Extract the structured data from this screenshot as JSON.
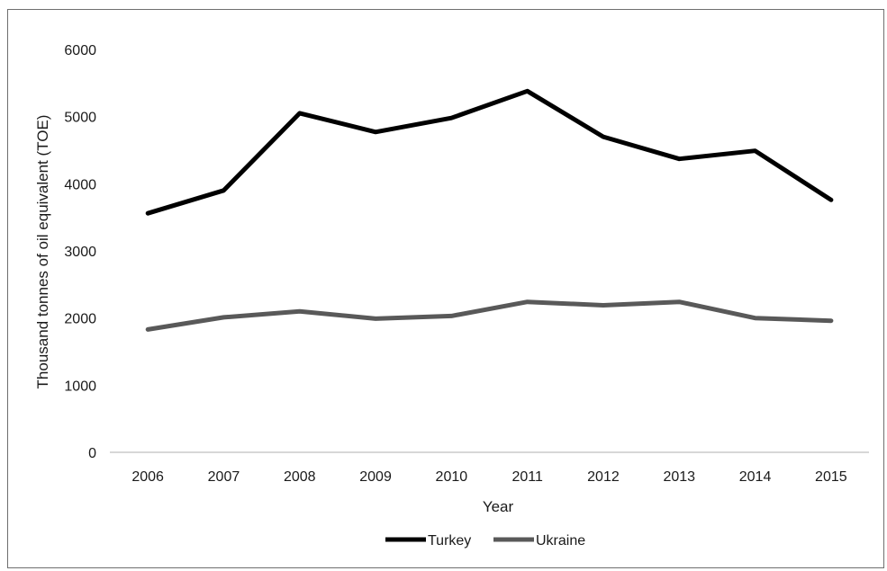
{
  "chart_data": {
    "type": "line",
    "title": "",
    "xlabel": "Year",
    "ylabel": "Thousand tonnes of oil equivalent (TOE)",
    "categories": [
      "2006",
      "2007",
      "2008",
      "2009",
      "2010",
      "2011",
      "2012",
      "2013",
      "2014",
      "2015"
    ],
    "ylim": [
      0,
      6000
    ],
    "yticks": [
      0,
      1000,
      2000,
      3000,
      4000,
      5000,
      6000
    ],
    "ytick_labels": [
      "0",
      "1000",
      "2000",
      "3000",
      "4000",
      "5000",
      "6000"
    ],
    "grid": false,
    "legend_position": "bottom",
    "series": [
      {
        "name": "Turkey",
        "color": "#000000",
        "values": [
          3560,
          3900,
          5050,
          4770,
          4980,
          5380,
          4700,
          4370,
          4490,
          3760
        ]
      },
      {
        "name": "Ukraine",
        "color": "#595959",
        "values": [
          1830,
          2010,
          2100,
          1990,
          2030,
          2240,
          2190,
          2240,
          2000,
          1960
        ]
      }
    ]
  }
}
